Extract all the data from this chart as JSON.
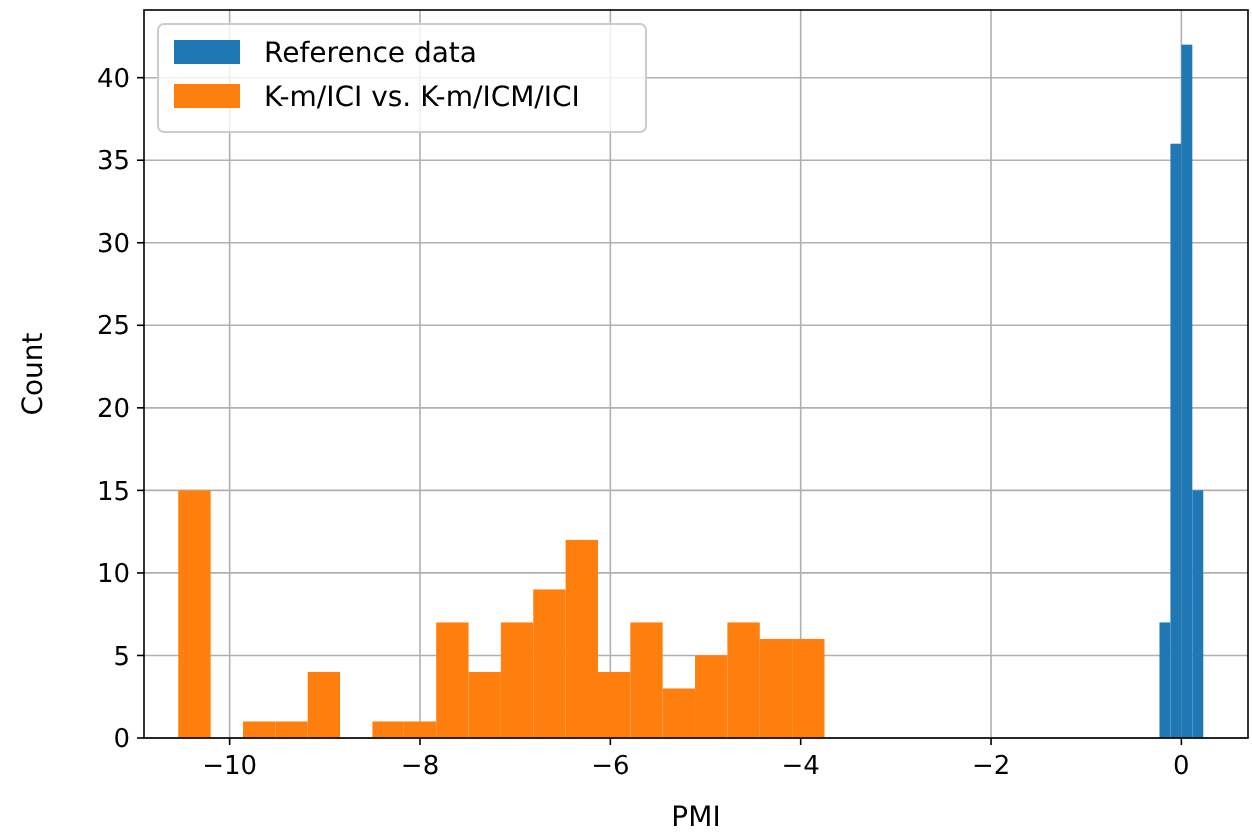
{
  "chart_data": {
    "type": "histogram",
    "xlabel": "PMI",
    "ylabel": "Count",
    "bins": [
      -10.54,
      -10.2,
      -9.86,
      -9.52,
      -9.18,
      -8.84,
      -8.5,
      -8.17,
      -7.83,
      -7.49,
      -7.15,
      -6.81,
      -6.47,
      -6.13,
      -5.79,
      -5.45,
      -5.11,
      -4.77,
      -4.43,
      -4.09,
      -3.75,
      -0.23,
      -0.115,
      0,
      0.115,
      0.23
    ],
    "series": [
      {
        "name": "Reference data",
        "color": "#1f77b4",
        "values": [
          null,
          null,
          null,
          null,
          null,
          null,
          null,
          null,
          null,
          null,
          null,
          null,
          null,
          null,
          null,
          null,
          null,
          null,
          null,
          null,
          null,
          7,
          36,
          42,
          15
        ]
      },
      {
        "name": "K-m/ICI vs. K-m/ICM/ICI",
        "color": "#ff7f0e",
        "values": [
          15,
          0,
          1,
          1,
          4,
          0,
          1,
          1,
          7,
          4,
          7,
          9,
          12,
          4,
          7,
          3,
          5,
          7,
          6,
          6,
          null,
          null,
          null,
          null,
          null
        ]
      }
    ],
    "xlim": [
      -10.9,
      0.7
    ],
    "ylim": [
      0,
      44.1
    ],
    "xticks": [
      {
        "value": -10,
        "label": "−10"
      },
      {
        "value": -8,
        "label": "−8"
      },
      {
        "value": -6,
        "label": "−6"
      },
      {
        "value": -4,
        "label": "−4"
      },
      {
        "value": -2,
        "label": "−2"
      },
      0
    ],
    "yticks": [
      0,
      5,
      10,
      15,
      20,
      25,
      30,
      35,
      40
    ],
    "grid": true,
    "legend": "top left"
  }
}
